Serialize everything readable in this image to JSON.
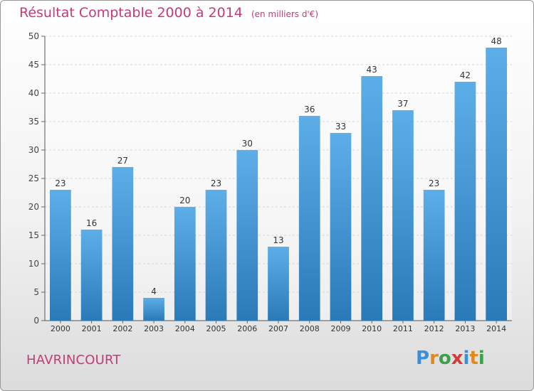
{
  "header": {
    "title": "Résultat Comptable 2000 à 2014",
    "subtitle": "(en milliers d'€)"
  },
  "footer": {
    "commune": "HAVRINCOURT",
    "brand_letters": [
      "P",
      "r",
      "o",
      "x",
      "i",
      "t",
      "i"
    ]
  },
  "colors": {
    "title": "#c53a78",
    "bar_top": "#5daee8",
    "bar_bottom": "#2a7ab8",
    "brand": [
      "#3b8fd6",
      "#e08a1e",
      "#3aa04a",
      "#d83a3a",
      "#3b8fd6",
      "#e08a1e",
      "#3aa04a"
    ]
  },
  "chart_data": {
    "type": "bar",
    "title": "Résultat Comptable 2000 à 2014",
    "subtitle": "(en milliers d'€)",
    "xlabel": "",
    "ylabel": "",
    "ylim": [
      0,
      50
    ],
    "yticks": [
      0,
      5,
      10,
      15,
      20,
      25,
      30,
      35,
      40,
      45,
      50
    ],
    "grid": true,
    "categories": [
      "2000",
      "2001",
      "2002",
      "2003",
      "2004",
      "2005",
      "2006",
      "2007",
      "2008",
      "2009",
      "2010",
      "2011",
      "2012",
      "2013",
      "2014"
    ],
    "values": [
      23,
      16,
      27,
      4,
      20,
      23,
      30,
      13,
      36,
      33,
      43,
      37,
      23,
      42,
      48
    ]
  }
}
